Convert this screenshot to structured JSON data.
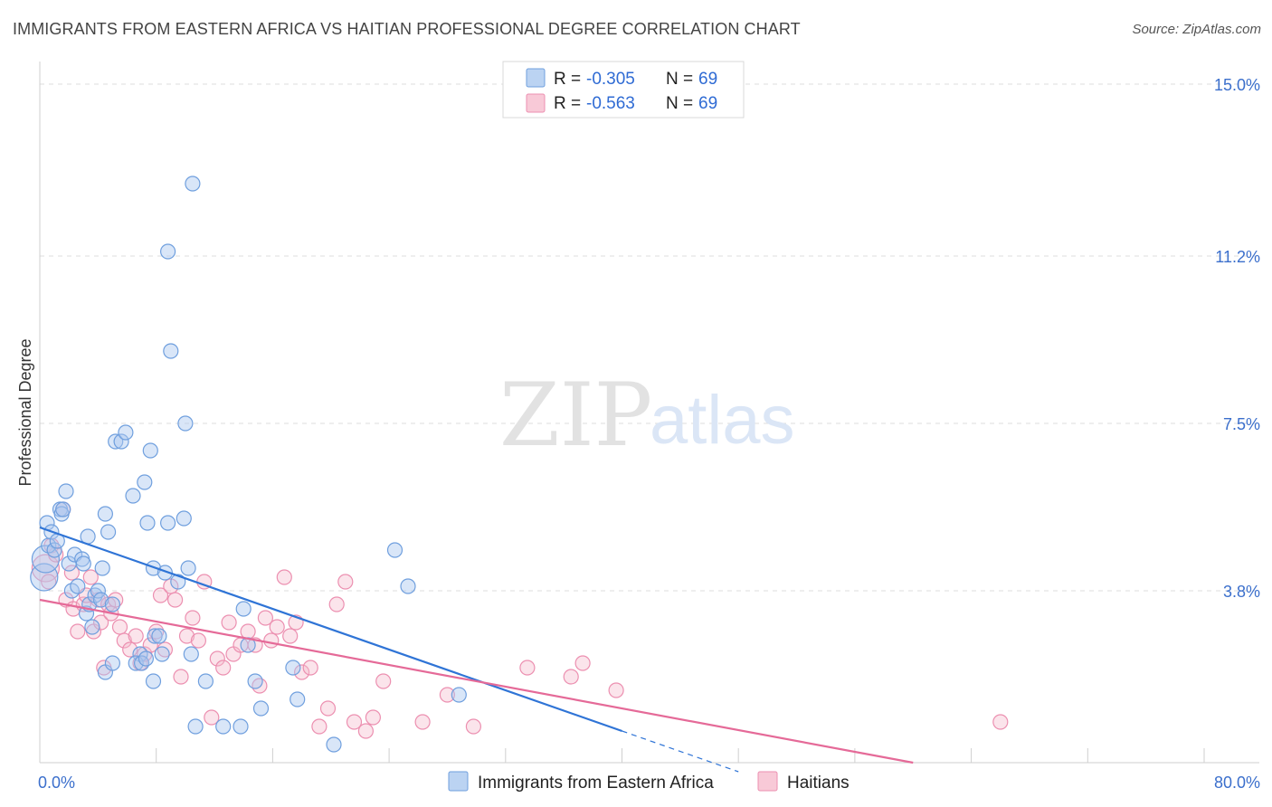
{
  "title": "IMMIGRANTS FROM EASTERN AFRICA VS HAITIAN PROFESSIONAL DEGREE CORRELATION CHART",
  "source": "Source: ZipAtlas.com",
  "watermark": {
    "zip": "ZIP",
    "atlas": "atlas"
  },
  "colors": {
    "blue_fill": "#aac8ef",
    "blue_stroke": "#6f9fde",
    "blue_line": "#2f74d6",
    "pink_fill": "#f6bccd",
    "pink_stroke": "#ec8fb0",
    "pink_line": "#e56a98",
    "grid": "#dddddd",
    "axis_label": "#3b6fcc"
  },
  "legend": {
    "rows": [
      {
        "r_label": "R = ",
        "r_value": "-0.305",
        "n_label": "N = ",
        "n_value": "69"
      },
      {
        "r_label": "R = ",
        "r_value": "-0.563",
        "n_label": "N = ",
        "n_value": "69"
      }
    ]
  },
  "bottom_legend": [
    "Immigrants from Eastern Africa",
    "Haitians"
  ],
  "chart_data": {
    "type": "scatter",
    "title": "IMMIGRANTS FROM EASTERN AFRICA VS HAITIAN PROFESSIONAL DEGREE CORRELATION CHART",
    "xlabel": "",
    "ylabel": "Professional Degree",
    "xlim": [
      0,
      80
    ],
    "ylim": [
      0,
      15.3
    ],
    "x_tick_labels": [
      {
        "value": 0,
        "label": "0.0%"
      },
      {
        "value": 80,
        "label": "80.0%"
      }
    ],
    "y_ticks": [
      {
        "value": 3.8,
        "label": "3.8%"
      },
      {
        "value": 7.5,
        "label": "7.5%"
      },
      {
        "value": 11.2,
        "label": "11.2%"
      },
      {
        "value": 15.0,
        "label": "15.0%"
      }
    ],
    "x_minor_ticks": [
      8,
      16,
      24,
      32,
      40,
      48,
      56,
      64,
      72,
      80
    ],
    "grid": true,
    "legend_position": "top-center",
    "series": [
      {
        "name": "Immigrants from Eastern Africa",
        "color": "#aac8ef",
        "R": -0.305,
        "N": 69,
        "trend": {
          "x0": 0,
          "y0": 5.2,
          "x1": 40,
          "y1": 0.7,
          "dashed_to_x": 48
        },
        "points": [
          [
            0.3,
            4.1,
            "L"
          ],
          [
            0.4,
            4.5,
            "L"
          ],
          [
            0.5,
            5.3
          ],
          [
            0.6,
            4.8
          ],
          [
            0.8,
            5.1
          ],
          [
            1.0,
            4.7
          ],
          [
            1.2,
            4.9
          ],
          [
            1.4,
            5.6
          ],
          [
            1.5,
            5.5
          ],
          [
            1.6,
            5.6
          ],
          [
            1.8,
            6.0
          ],
          [
            2.0,
            4.4
          ],
          [
            2.2,
            3.8
          ],
          [
            2.4,
            4.6
          ],
          [
            2.6,
            3.9
          ],
          [
            2.9,
            4.5
          ],
          [
            3.0,
            4.4
          ],
          [
            3.2,
            3.3
          ],
          [
            3.4,
            3.5
          ],
          [
            3.3,
            5.0
          ],
          [
            3.6,
            3.0
          ],
          [
            3.8,
            3.7
          ],
          [
            4.0,
            3.8
          ],
          [
            4.2,
            3.6
          ],
          [
            4.3,
            4.3
          ],
          [
            4.5,
            5.5
          ],
          [
            4.7,
            5.1
          ],
          [
            5.0,
            3.5
          ],
          [
            4.5,
            2.0
          ],
          [
            5.0,
            2.2
          ],
          [
            5.2,
            7.1
          ],
          [
            5.6,
            7.1
          ],
          [
            5.9,
            7.3
          ],
          [
            6.4,
            5.9
          ],
          [
            6.9,
            2.4
          ],
          [
            6.6,
            2.2
          ],
          [
            7.0,
            2.2
          ],
          [
            7.3,
            2.3
          ],
          [
            7.2,
            6.2
          ],
          [
            7.4,
            5.3
          ],
          [
            7.6,
            6.9
          ],
          [
            7.8,
            4.3
          ],
          [
            7.9,
            2.8
          ],
          [
            7.8,
            1.8
          ],
          [
            8.2,
            2.8
          ],
          [
            8.4,
            2.4
          ],
          [
            8.6,
            4.2
          ],
          [
            8.8,
            5.3
          ],
          [
            8.8,
            11.3
          ],
          [
            9.0,
            9.1
          ],
          [
            9.5,
            4.0
          ],
          [
            9.9,
            5.4
          ],
          [
            10.0,
            7.5
          ],
          [
            10.2,
            4.3
          ],
          [
            10.5,
            12.8
          ],
          [
            11.4,
            1.8
          ],
          [
            10.4,
            2.4
          ],
          [
            10.7,
            0.8
          ],
          [
            12.6,
            0.8
          ],
          [
            13.8,
            0.8
          ],
          [
            14.0,
            3.4
          ],
          [
            14.3,
            2.6
          ],
          [
            14.8,
            1.8
          ],
          [
            15.2,
            1.2
          ],
          [
            17.4,
            2.1
          ],
          [
            17.7,
            1.4
          ],
          [
            20.2,
            0.4
          ],
          [
            24.4,
            4.7
          ],
          [
            25.3,
            3.9
          ],
          [
            28.8,
            1.5
          ]
        ]
      },
      {
        "name": "Haitians",
        "color": "#f6bccd",
        "R": -0.563,
        "N": 69,
        "trend": {
          "x0": 0,
          "y0": 3.6,
          "x1": 60,
          "y1": 0.0
        },
        "points": [
          [
            0.4,
            4.3,
            "L"
          ],
          [
            0.6,
            4.0
          ],
          [
            0.8,
            4.8
          ],
          [
            1.1,
            4.6
          ],
          [
            1.6,
            5.6
          ],
          [
            1.8,
            3.6
          ],
          [
            2.2,
            4.2
          ],
          [
            2.3,
            3.4
          ],
          [
            2.6,
            2.9
          ],
          [
            3.0,
            3.5
          ],
          [
            3.2,
            3.7
          ],
          [
            3.5,
            4.1
          ],
          [
            3.7,
            2.9
          ],
          [
            4.0,
            3.6
          ],
          [
            4.2,
            3.1
          ],
          [
            4.4,
            2.1
          ],
          [
            4.7,
            3.5
          ],
          [
            4.9,
            3.3
          ],
          [
            5.2,
            3.6
          ],
          [
            5.5,
            3.0
          ],
          [
            5.8,
            2.7
          ],
          [
            6.2,
            2.5
          ],
          [
            6.6,
            2.8
          ],
          [
            6.9,
            2.2
          ],
          [
            7.2,
            2.4
          ],
          [
            7.6,
            2.6
          ],
          [
            8.0,
            2.9
          ],
          [
            8.3,
            3.7
          ],
          [
            8.6,
            2.5
          ],
          [
            9.0,
            3.9
          ],
          [
            9.3,
            3.6
          ],
          [
            9.7,
            1.9
          ],
          [
            10.1,
            2.8
          ],
          [
            10.5,
            3.2
          ],
          [
            10.9,
            2.7
          ],
          [
            11.3,
            4.0
          ],
          [
            11.8,
            1.0
          ],
          [
            12.2,
            2.3
          ],
          [
            12.6,
            2.1
          ],
          [
            13.0,
            3.1
          ],
          [
            13.3,
            2.4
          ],
          [
            13.8,
            2.6
          ],
          [
            14.3,
            2.9
          ],
          [
            14.8,
            2.6
          ],
          [
            15.1,
            1.7
          ],
          [
            15.5,
            3.2
          ],
          [
            15.9,
            2.7
          ],
          [
            16.3,
            3.0
          ],
          [
            16.8,
            4.1
          ],
          [
            17.2,
            2.8
          ],
          [
            17.6,
            3.1
          ],
          [
            18.0,
            2.0
          ],
          [
            18.6,
            2.1
          ],
          [
            19.2,
            0.8
          ],
          [
            19.8,
            1.2
          ],
          [
            20.4,
            3.5
          ],
          [
            21.0,
            4.0
          ],
          [
            21.6,
            0.9
          ],
          [
            22.4,
            0.7
          ],
          [
            22.9,
            1.0
          ],
          [
            23.6,
            1.8
          ],
          [
            26.3,
            0.9
          ],
          [
            28.0,
            1.5
          ],
          [
            29.8,
            0.8
          ],
          [
            33.5,
            2.1
          ],
          [
            36.5,
            1.9
          ],
          [
            37.3,
            2.2
          ],
          [
            39.6,
            1.6
          ],
          [
            66.0,
            0.9
          ]
        ]
      }
    ]
  }
}
